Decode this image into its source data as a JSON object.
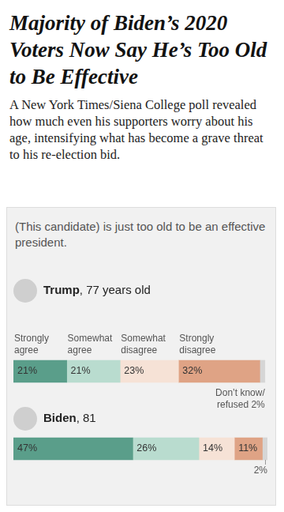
{
  "chart_data": {
    "type": "bar",
    "orientation": "horizontal",
    "stacked": true,
    "title": "Majority of Biden’s 2020 Voters Now Say He’s Too Old to Be Effective",
    "subtitle": "A New York Times/Siena College poll revealed how much even his supporters worry about his age, intensifying what has become a grave threat to his re-election bid.",
    "annotation": "(This candidate) is just too old to be an effective president.",
    "categories": [
      "Trump, 77 years old",
      "Biden, 81"
    ],
    "series": [
      {
        "name": "Strongly agree",
        "color": "#5a9e8a",
        "values": [
          21,
          47
        ],
        "value_labels": [
          "21%",
          "47%"
        ]
      },
      {
        "name": "Somewhat agree",
        "color": "#b9dccf",
        "values": [
          21,
          26
        ],
        "value_labels": [
          "21%",
          "26%"
        ]
      },
      {
        "name": "Somewhat disagree",
        "color": "#f6e2d6",
        "values": [
          23,
          14
        ],
        "value_labels": [
          "23%",
          "14%"
        ]
      },
      {
        "name": "Strongly disagree",
        "color": "#dfa385",
        "values": [
          32,
          11
        ],
        "value_labels": [
          "32%",
          "11%"
        ]
      },
      {
        "name": "Don’t know/refused",
        "color": "#d6d6d6",
        "values": [
          2,
          2
        ],
        "value_labels": [
          "2%",
          "2%"
        ]
      }
    ],
    "xlim": [
      0,
      100
    ],
    "grid": false,
    "tick_labels": false,
    "data_labels": true
  }
}
